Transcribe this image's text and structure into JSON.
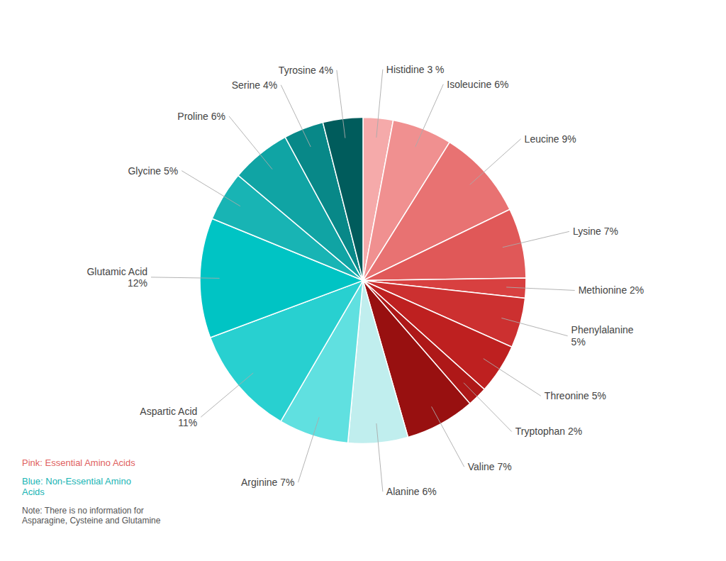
{
  "chart_data": {
    "type": "pie",
    "categories": [
      "Histidine 3 %",
      "Isoleucine 6%",
      "Leucine 9%",
      "Lysine 7%",
      "Methionine 2%",
      "Phenylalanine\n5%",
      "Threonine 5%",
      "Tryptophan 2%",
      "Valine 7%",
      "Alanine 6%",
      "Arginine 7%",
      "Aspartic Acid\n11%",
      "Glutamic Acid\n12%",
      "Glycine 5%",
      "Proline 6%",
      "Serine 4%",
      "Tyrosine 4%"
    ],
    "values": [
      3,
      6,
      9,
      7,
      2,
      5,
      5,
      2,
      7,
      6,
      7,
      11,
      12,
      5,
      6,
      4,
      4
    ],
    "colors": [
      "#F5AAAA",
      "#F09090",
      "#E87272",
      "#E05858",
      "#D84040",
      "#CC3030",
      "#BE2020",
      "#AE1818",
      "#981010",
      "#C0EEEE",
      "#60E0E0",
      "#28D0D0",
      "#00C4C4",
      "#18B4B4",
      "#10A4A4",
      "#088888",
      "#005C5C"
    ],
    "annotations": [
      {
        "text": "Pink: Essential Amino Acids",
        "color": "#E06060"
      },
      {
        "text": "Blue: Non-Essential Amino\nAcids",
        "color": "#18B4B4"
      },
      {
        "text": "Note: There is no information for\nAsparagine, Cysteine and Glutamine",
        "color": "#555555"
      }
    ]
  }
}
